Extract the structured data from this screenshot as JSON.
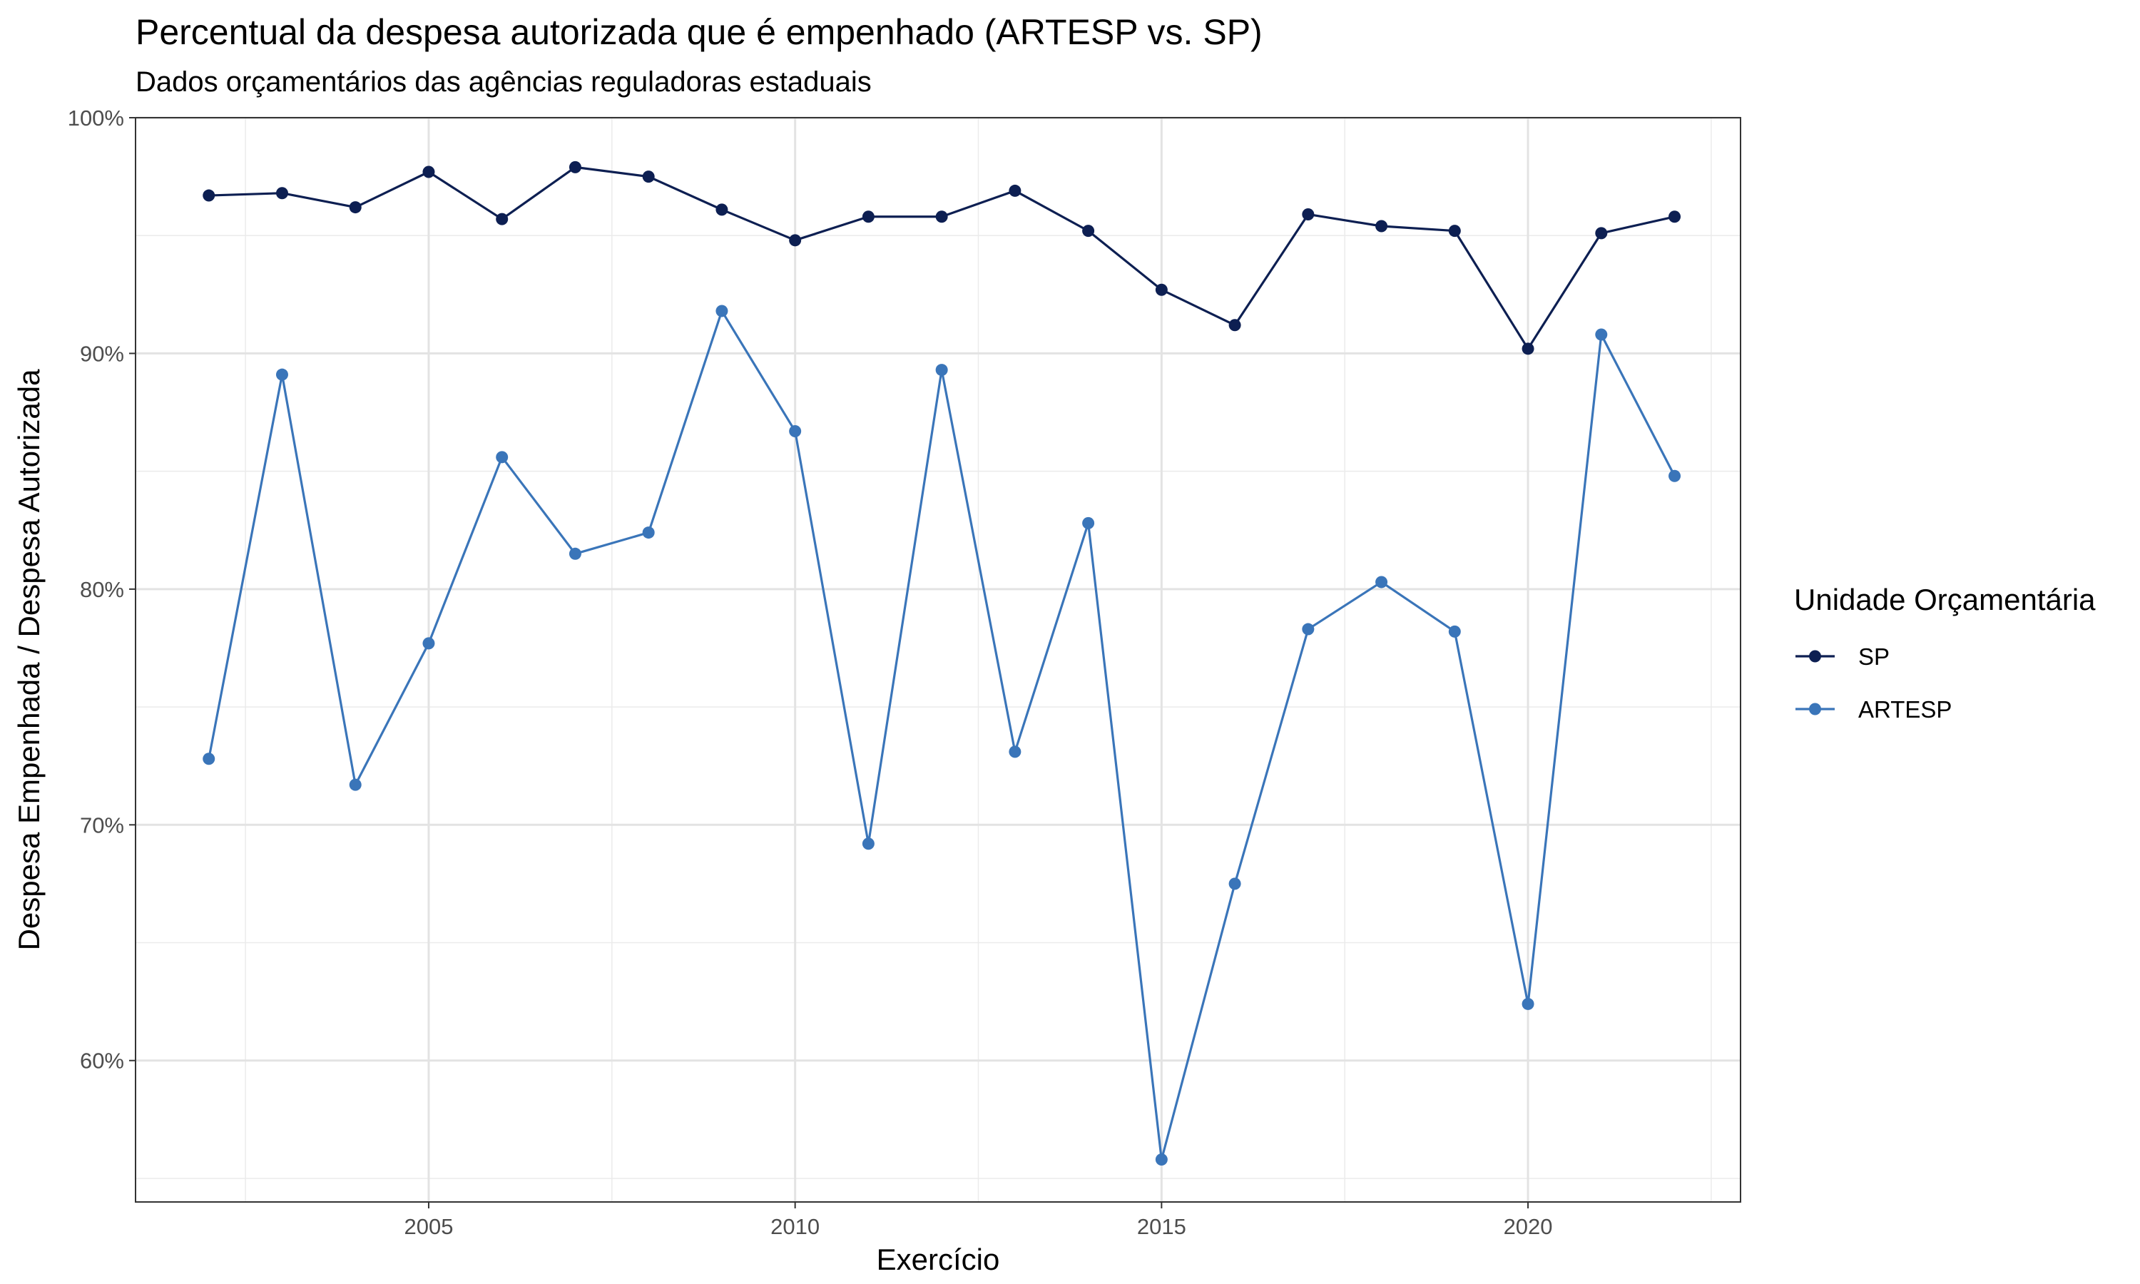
{
  "chart_data": {
    "type": "line",
    "title": "Percentual da despesa autorizada que é empenhado (ARTESP vs. SP)",
    "subtitle": "Dados orçamentários das agências reguladoras estaduais",
    "xlabel": "Exercício",
    "ylabel": "Despesa Empenhada / Despesa Autorizada",
    "xlim": [
      2001.0,
      2022.9
    ],
    "ylim": [
      54.0,
      100.0
    ],
    "x_ticks": [
      2005,
      2010,
      2015,
      2020
    ],
    "x_tick_labels": [
      "2005",
      "2010",
      "2015",
      "2020"
    ],
    "y_ticks": [
      60,
      70,
      80,
      90,
      100
    ],
    "y_tick_labels": [
      "60%",
      "70%",
      "80%",
      "90%",
      "100%"
    ],
    "grid": true,
    "legend_title": "Unidade Orçamentária",
    "legend_position": "right",
    "x": [
      2002,
      2003,
      2004,
      2005,
      2006,
      2007,
      2008,
      2009,
      2010,
      2011,
      2012,
      2013,
      2014,
      2015,
      2016,
      2017,
      2018,
      2019,
      2020,
      2021,
      2022
    ],
    "series": [
      {
        "name": "SP",
        "color": "#0d1f52",
        "values": [
          96.7,
          96.8,
          96.2,
          97.7,
          95.7,
          97.9,
          97.5,
          96.1,
          94.8,
          95.8,
          95.8,
          96.9,
          95.2,
          92.7,
          91.2,
          95.9,
          95.4,
          95.2,
          90.2,
          95.1,
          95.8
        ]
      },
      {
        "name": "ARTESP",
        "color": "#3a75b9",
        "values": [
          72.8,
          89.1,
          71.7,
          77.7,
          85.6,
          81.5,
          82.4,
          91.8,
          86.7,
          69.2,
          89.3,
          73.1,
          82.8,
          55.8,
          67.5,
          78.3,
          80.3,
          78.2,
          62.4,
          90.8,
          84.8
        ]
      }
    ]
  }
}
